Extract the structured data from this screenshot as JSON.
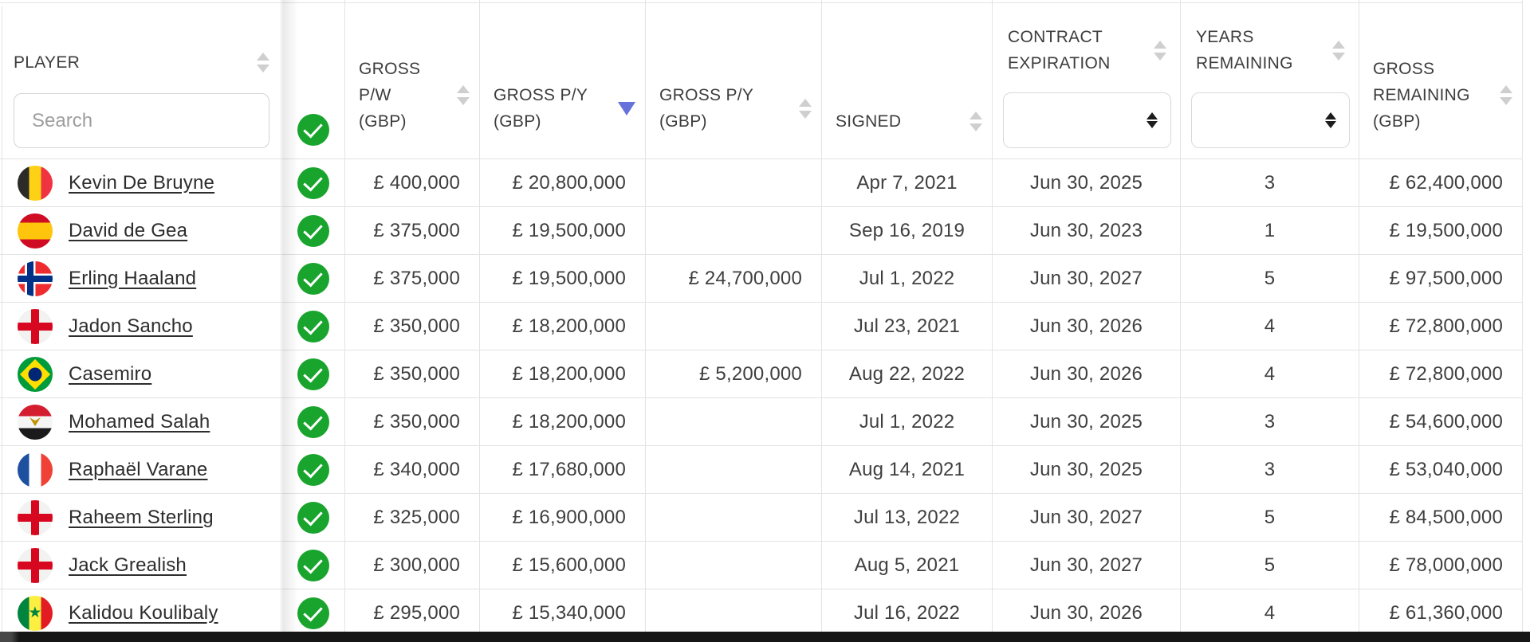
{
  "header": {
    "player_label": "PLAYER",
    "player_search_placeholder": "Search",
    "verified_icon": "check-circle",
    "gross_pw_label": "GROSS P/W (GBP)",
    "gross_py_label": "GROSS P/Y (GBP)",
    "gross_py_alt_label": "GROSS P/Y (GBP)",
    "signed_label": "SIGNED",
    "contract_expiration_label": "CONTRACT EXPIRATION",
    "years_remaining_label": "YEARS REMAINING",
    "gross_remaining_label": "GROSS REMAINING (GBP)",
    "sorted_column": "GROSS P/Y (GBP)",
    "sort_direction": "desc",
    "contract_expiration_filter_value": "",
    "years_remaining_filter_value": ""
  },
  "colors": {
    "verified_green": "#18a42d",
    "active_sort_blue": "#6671d9",
    "grid_line": "#e3e3e3",
    "text": "#3f3f3f"
  },
  "rows": [
    {
      "player": "Kevin De Bruyne",
      "nationality": "belgium",
      "verified": true,
      "gross_pw": "£ 400,000",
      "gross_py": "£ 20,800,000",
      "gross_py_alt": "",
      "signed": "Apr 7, 2021",
      "contract_expiration": "Jun 30, 2025",
      "years_remaining": "3",
      "gross_remaining": "£ 62,400,000"
    },
    {
      "player": "David de Gea",
      "nationality": "spain",
      "verified": true,
      "gross_pw": "£ 375,000",
      "gross_py": "£ 19,500,000",
      "gross_py_alt": "",
      "signed": "Sep 16, 2019",
      "contract_expiration": "Jun 30, 2023",
      "years_remaining": "1",
      "gross_remaining": "£ 19,500,000"
    },
    {
      "player": "Erling Haaland",
      "nationality": "norway",
      "verified": true,
      "gross_pw": "£ 375,000",
      "gross_py": "£ 19,500,000",
      "gross_py_alt": "£ 24,700,000",
      "signed": "Jul 1, 2022",
      "contract_expiration": "Jun 30, 2027",
      "years_remaining": "5",
      "gross_remaining": "£ 97,500,000"
    },
    {
      "player": "Jadon Sancho",
      "nationality": "england",
      "verified": true,
      "gross_pw": "£ 350,000",
      "gross_py": "£ 18,200,000",
      "gross_py_alt": "",
      "signed": "Jul 23, 2021",
      "contract_expiration": "Jun 30, 2026",
      "years_remaining": "4",
      "gross_remaining": "£ 72,800,000"
    },
    {
      "player": "Casemiro",
      "nationality": "brazil",
      "verified": true,
      "gross_pw": "£ 350,000",
      "gross_py": "£ 18,200,000",
      "gross_py_alt": "£ 5,200,000",
      "signed": "Aug 22, 2022",
      "contract_expiration": "Jun 30, 2026",
      "years_remaining": "4",
      "gross_remaining": "£ 72,800,000"
    },
    {
      "player": "Mohamed Salah",
      "nationality": "egypt",
      "verified": true,
      "gross_pw": "£ 350,000",
      "gross_py": "£ 18,200,000",
      "gross_py_alt": "",
      "signed": "Jul 1, 2022",
      "contract_expiration": "Jun 30, 2025",
      "years_remaining": "3",
      "gross_remaining": "£ 54,600,000"
    },
    {
      "player": "Raphaël Varane",
      "nationality": "france",
      "verified": true,
      "gross_pw": "£ 340,000",
      "gross_py": "£ 17,680,000",
      "gross_py_alt": "",
      "signed": "Aug 14, 2021",
      "contract_expiration": "Jun 30, 2025",
      "years_remaining": "3",
      "gross_remaining": "£ 53,040,000"
    },
    {
      "player": "Raheem Sterling",
      "nationality": "england",
      "verified": true,
      "gross_pw": "£ 325,000",
      "gross_py": "£ 16,900,000",
      "gross_py_alt": "",
      "signed": "Jul 13, 2022",
      "contract_expiration": "Jun 30, 2027",
      "years_remaining": "5",
      "gross_remaining": "£ 84,500,000"
    },
    {
      "player": "Jack Grealish",
      "nationality": "england",
      "verified": true,
      "gross_pw": "£ 300,000",
      "gross_py": "£ 15,600,000",
      "gross_py_alt": "",
      "signed": "Aug 5, 2021",
      "contract_expiration": "Jun 30, 2027",
      "years_remaining": "5",
      "gross_remaining": "£ 78,000,000"
    },
    {
      "player": "Kalidou Koulibaly",
      "nationality": "senegal",
      "verified": true,
      "gross_pw": "£ 295,000",
      "gross_py": "£ 15,340,000",
      "gross_py_alt": "",
      "signed": "Jul 16, 2022",
      "contract_expiration": "Jun 30, 2026",
      "years_remaining": "4",
      "gross_remaining": "£ 61,360,000"
    }
  ]
}
